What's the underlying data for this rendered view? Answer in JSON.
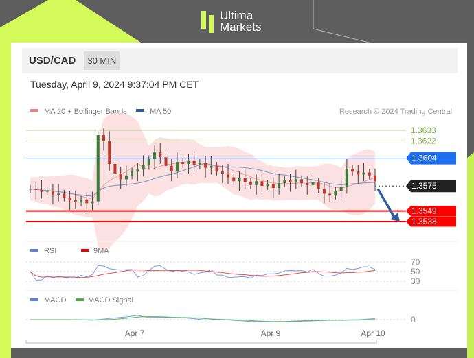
{
  "brand": {
    "line1": "Ultima",
    "line2": "Markets",
    "accent": "#d4fa5a"
  },
  "header": {
    "pair": "USD/CAD",
    "timeframe": "30 MIN"
  },
  "timestamp": "Tuesday, April 9, 2024 9:37:04 PM CET",
  "legend": {
    "ma20": "MA 20 + Bollinger Bands",
    "ma50": "MA 50",
    "credit": "Research © 2024 Trading Central",
    "rsi": "RSI",
    "rsi_ma": "9MA",
    "macd": "MACD",
    "macd_signal": "MACD Signal"
  },
  "chart_data": {
    "type": "candlestick",
    "x_ticks": [
      "Apr 7",
      "Apr 9",
      "Apr 10"
    ],
    "price_levels": [
      {
        "label": "1.3633",
        "value": 1.3633,
        "color": "#8bc34a",
        "kind": "resistance"
      },
      {
        "label": "1.3622",
        "value": 1.3622,
        "color": "#8bc34a",
        "kind": "resistance"
      },
      {
        "label": "1.3604",
        "value": 1.3604,
        "color": "#1e6ff0",
        "kind": "pivot"
      },
      {
        "label": "1.3575",
        "value": 1.3575,
        "color": "#222222",
        "kind": "last"
      },
      {
        "label": "1.3549",
        "value": 1.3549,
        "color": "#ff0000",
        "kind": "target"
      },
      {
        "label": "1.3538",
        "value": 1.3538,
        "color": "#ff0000",
        "kind": "target"
      }
    ],
    "close": [
      1.3572,
      1.3571,
      1.3569,
      1.357,
      1.3566,
      1.3567,
      1.3563,
      1.356,
      1.3558,
      1.3561,
      1.3557,
      1.3559,
      1.3628,
      1.3622,
      1.3598,
      1.3588,
      1.3582,
      1.3586,
      1.359,
      1.3592,
      1.3597,
      1.3603,
      1.361,
      1.3605,
      1.3596,
      1.359,
      1.36,
      1.3598,
      1.3601,
      1.3597,
      1.3599,
      1.3594,
      1.3596,
      1.359,
      1.3588,
      1.3584,
      1.358,
      1.3583,
      1.3579,
      1.3576,
      1.358,
      1.3575,
      1.3577,
      1.3573,
      1.3578,
      1.3581,
      1.3579,
      1.3582,
      1.3578,
      1.3576,
      1.3579,
      1.3572,
      1.3567,
      1.3565,
      1.357,
      1.3574,
      1.3593,
      1.359,
      1.3587,
      1.3589,
      1.3586,
      1.358
    ],
    "rsi_levels": [
      70,
      50,
      30
    ],
    "macd_zero": 0
  }
}
